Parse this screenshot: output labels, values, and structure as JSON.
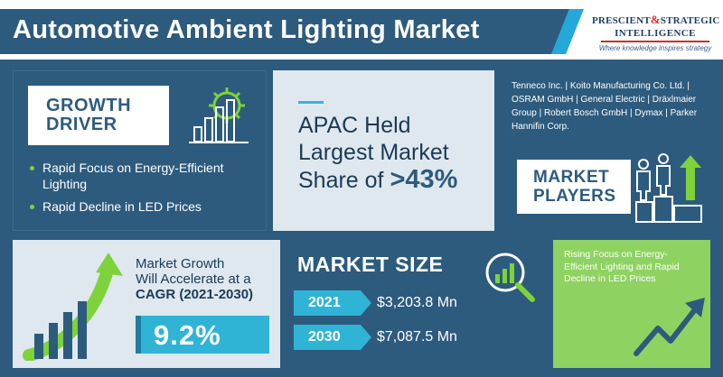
{
  "header": {
    "title": "Automotive Ambient Lighting Market",
    "logo": {
      "line1_a": "PRESCIENT",
      "line1_amp": "&",
      "line1_b": "STRATEGIC",
      "line2": "INTELLIGENCE",
      "tagline": "Where knowledge inspires strategy"
    }
  },
  "growth_driver": {
    "label_line1": "GROWTH",
    "label_line2": "DRIVER",
    "icon": "gear-bar-chart-icon",
    "items": [
      "Rapid Focus on Energy-Efficient Lighting",
      "Rapid Decline in LED Prices"
    ]
  },
  "apac": {
    "line1": "APAC Held",
    "line2": "Largest Market",
    "line3_prefix": "Share of",
    "share": ">43%"
  },
  "market_players": {
    "list": "Tenneco Inc. | Koito Manufacturing Co. Ltd. | OSRAM GmbH | General Electric | Dräxlmaier Group | Robert Bosch GmbH | Dymax | Parker Hannifin Corp.",
    "label_line1": "MARKET",
    "label_line2": "PLAYERS",
    "icon": "podium-people-icon"
  },
  "cagr": {
    "line1": "Market Growth",
    "line2": "Will Accelerate at a",
    "line3": "CAGR (2021-2030)",
    "value": "9.2%",
    "icon": "growth-arrow-bars-icon"
  },
  "market_size": {
    "title": "MARKET SIZE",
    "icon": "magnifier-chart-icon",
    "rows": [
      {
        "year": "2021",
        "amount": "$3,203.8 Mn"
      },
      {
        "year": "2030",
        "amount": "$7,087.5 Mn"
      }
    ]
  },
  "focus": {
    "text": "Rising Focus on Energy-Efficient Lighting and Rapid Decline in LED Prices",
    "icon": "trend-arrow-icon"
  },
  "colors": {
    "navy": "#2d5b7e",
    "cyan": "#2fb4d6",
    "green": "#7ed23a",
    "light": "#dfe8ee"
  }
}
